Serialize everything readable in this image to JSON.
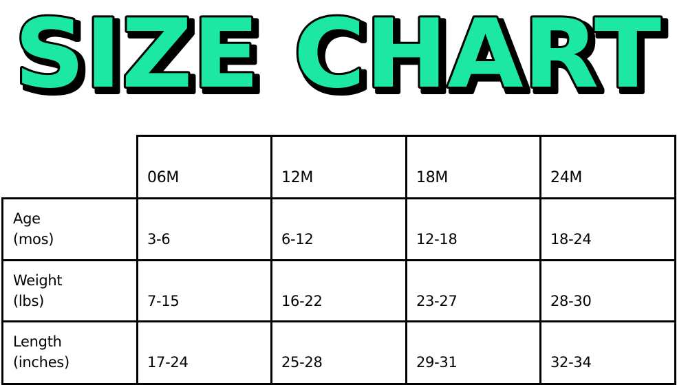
{
  "title": {
    "text": "SIZE CHART",
    "fill_color": "#1EE8A4",
    "outline_color": "#000000"
  },
  "table": {
    "columns": [
      "06M",
      "12M",
      "18M",
      "24M"
    ],
    "rows": [
      {
        "label_line1": "Age",
        "label_line2": "(mos)",
        "values": [
          "3-6",
          "6-12",
          "12-18",
          "18-24"
        ]
      },
      {
        "label_line1": "Weight",
        "label_line2": "(lbs)",
        "values": [
          "7-15",
          "16-22",
          "23-27",
          "28-30"
        ]
      },
      {
        "label_line1": "Length",
        "label_line2": "(inches)",
        "values": [
          "17-24",
          "25-28",
          "29-31",
          "32-34"
        ]
      }
    ]
  }
}
